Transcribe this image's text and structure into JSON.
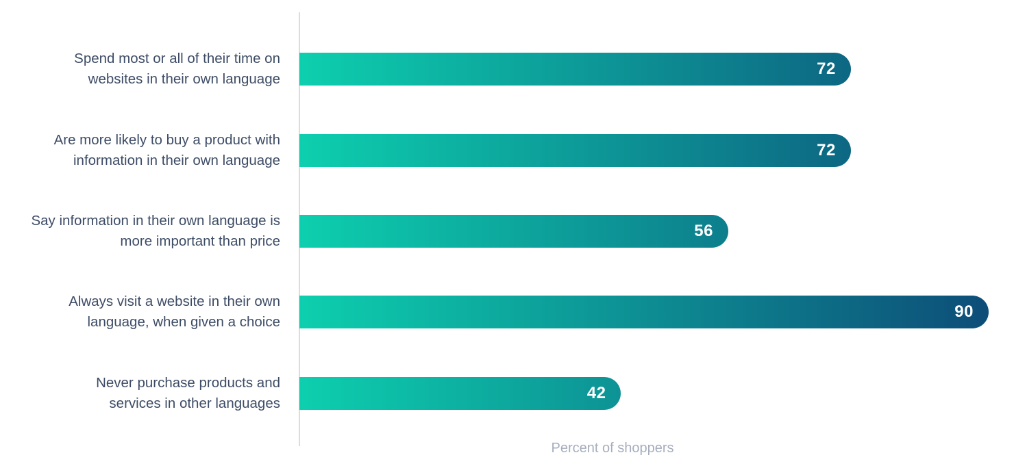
{
  "chart_data": {
    "type": "bar",
    "orientation": "horizontal",
    "title": "",
    "xlabel": "Percent of shoppers",
    "ylabel": "",
    "xlim": [
      0,
      90
    ],
    "grid": false,
    "legend": false,
    "categories": [
      "Spend most or all of their time on\nwebsites in their own language",
      "Are more likely to buy a product with\ninformation in their own language",
      "Say information in their own language is\nmore important than price",
      "Always visit a website in their own\nlanguage, when given a choice",
      "Never purchase products and\nservices in other languages"
    ],
    "values": [
      72,
      72,
      56,
      90,
      42
    ],
    "colors": {
      "bar_gradient_start": "#0dcfae",
      "bar_gradient_end": "#0d4d78",
      "value_label": "#ffffff",
      "category_label": "#3d4c66",
      "axis_line": "#dcdcdc",
      "xlabel_text": "#a6adbd",
      "background": "#ffffff"
    }
  }
}
